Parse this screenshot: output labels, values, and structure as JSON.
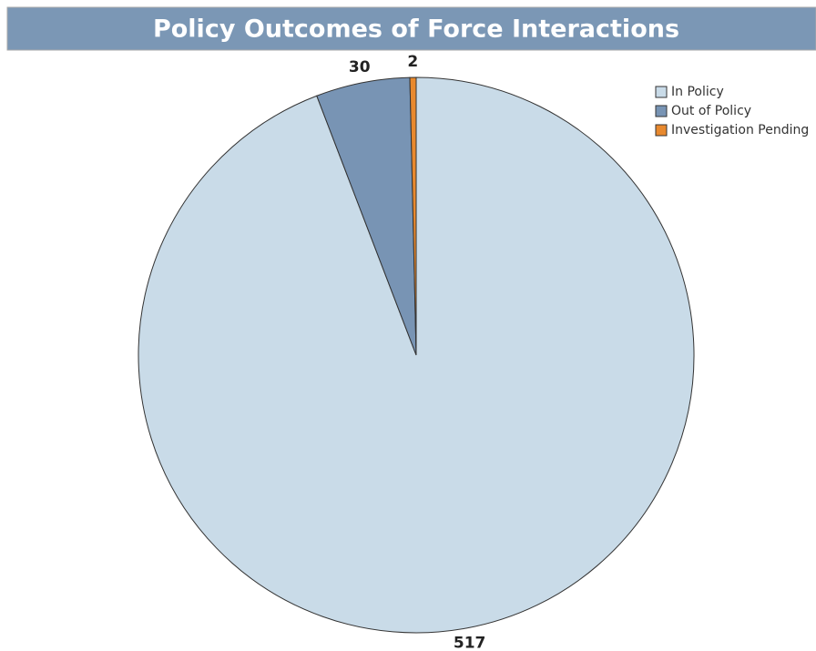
{
  "chart_data": {
    "type": "pie",
    "title": "Policy Outcomes of Force Interactions",
    "categories": [
      "In Policy",
      "Out of Policy",
      "Investigation Pending"
    ],
    "values": [
      517,
      30,
      2
    ],
    "colors": [
      "#c9dbe8",
      "#7894b4",
      "#e8892e"
    ],
    "legend": "top-right"
  }
}
